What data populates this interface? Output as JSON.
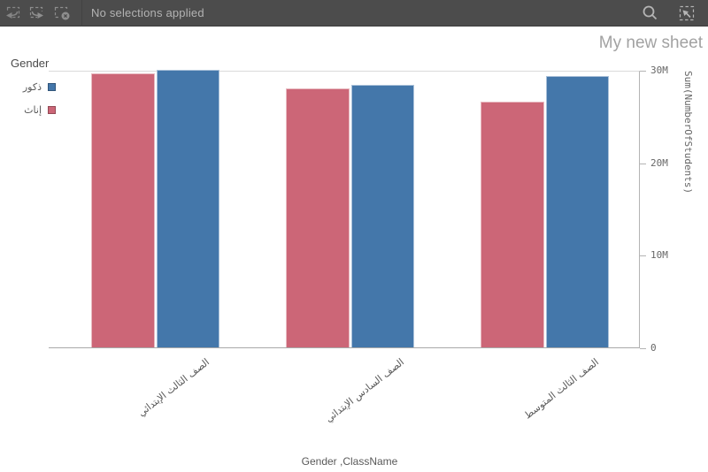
{
  "toolbar": {
    "status_text": "No selections applied",
    "icons": [
      "step-back-icon",
      "step-forward-icon",
      "clear-selections-icon",
      "search-icon",
      "selections-tool-icon"
    ]
  },
  "sheet": {
    "title": "My new sheet"
  },
  "colors": {
    "toolbar_bg": "#4c4c4c",
    "male_blue": "#4477aa",
    "female_red": "#cc6677",
    "axis_line": "#b3b3b3",
    "gridline": "#dadada"
  },
  "chart_data": {
    "type": "bar",
    "title": "",
    "categories": [
      "الصف الثالث الإبتدائي",
      "الصف السادس الإبتدائي",
      "الصف الثالث المتوسط"
    ],
    "series": [
      {
        "name": "إناث",
        "color": "#cc6677",
        "values": [
          29.6,
          28.0,
          26.6
        ]
      },
      {
        "name": "ذكور",
        "color": "#4477aa",
        "values": [
          30.0,
          28.4,
          29.3
        ]
      }
    ],
    "value_unit": "millions",
    "xlabel": "Gender ,ClassName",
    "ylabel": "Sum(NumberOfStudents)",
    "ylim": [
      0,
      30
    ],
    "grid": "top-line-only",
    "yticks": [
      {
        "value": 0,
        "label": "0"
      },
      {
        "value": 10,
        "label": "10M"
      },
      {
        "value": 20,
        "label": "20M"
      },
      {
        "value": 30,
        "label": "30M"
      }
    ],
    "legend": {
      "title": "Gender",
      "position": "top-left",
      "items": [
        {
          "label": "ذكور",
          "color": "#4477aa"
        },
        {
          "label": "إناث",
          "color": "#cc6677"
        }
      ]
    }
  }
}
